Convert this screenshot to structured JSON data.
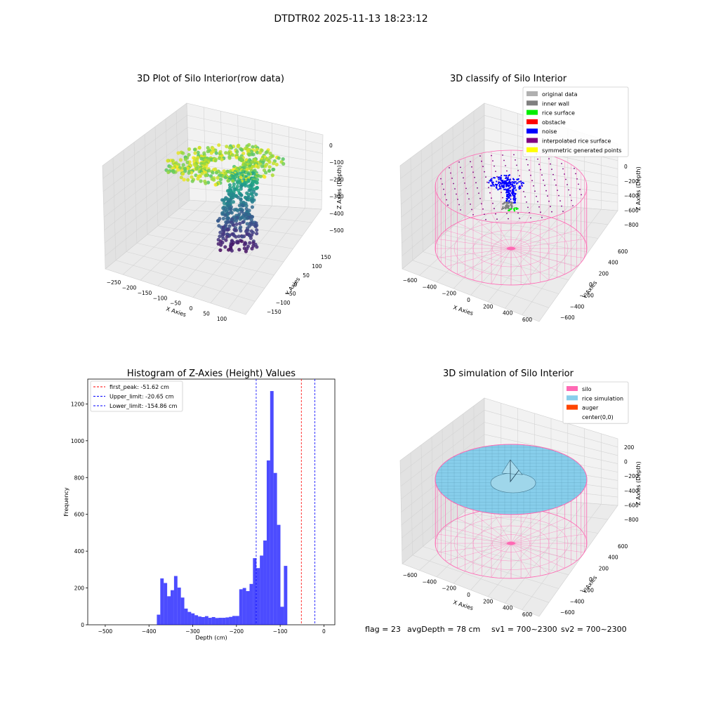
{
  "figure": {
    "suptitle": "DTDTR02 2025-11-13 18:23:12",
    "footer": {
      "flag": "flag = 23",
      "avg_depth": "avgDepth = 78 cm",
      "sv1": "sv1 = 700~2300",
      "sv2": "sv2 = 700~2300"
    }
  },
  "chart_data": [
    {
      "type": "scatter",
      "title": "3D Plot of Silo Interior(row data)",
      "xlabel": "X Axies",
      "ylabel": "Y Axies",
      "zlabel": "Z Axies (Depth)",
      "x_ticks": [
        "−250",
        "−200",
        "−150",
        "−100",
        "−50",
        "0",
        "50",
        "100"
      ],
      "y_ticks": [
        "−150",
        "−100",
        "−50",
        "0",
        "50",
        "100",
        "150"
      ],
      "z_ticks": [
        "0",
        "−100",
        "−200",
        "−300",
        "−400",
        "−500"
      ],
      "colormap": "viridis",
      "grid": true
    },
    {
      "type": "scatter",
      "title": "3D classify of Silo Interior",
      "xlabel": "X Axies",
      "ylabel": "Y Axies",
      "zlabel": "Z Axies (Depth)",
      "x_ticks": [
        "−600",
        "−400",
        "−200",
        "0",
        "200",
        "400",
        "600"
      ],
      "y_ticks": [
        "−600",
        "−400",
        "−200",
        "0",
        "200",
        "400",
        "600"
      ],
      "z_ticks": [
        "0",
        "−200",
        "−400",
        "−600",
        "−800"
      ],
      "legend": [
        {
          "label": "original data",
          "color": "#b0b0b0"
        },
        {
          "label": "inner wall",
          "color": "#808080"
        },
        {
          "label": "rice surface",
          "color": "#00ee00"
        },
        {
          "label": "obstacle",
          "color": "#ff0000"
        },
        {
          "label": "noise",
          "color": "#0000ff"
        },
        {
          "label": "interpolated rice surface",
          "color": "#800080"
        },
        {
          "label": "symmetric generated points",
          "color": "#ffff00"
        }
      ],
      "legend_position": "top-right",
      "grid": true
    },
    {
      "type": "bar",
      "title": "Histogram of Z-Axies (Height) Values",
      "xlabel": "Depth (cm)",
      "ylabel": "Frequency",
      "x_ticks": [
        "−500",
        "−400",
        "−300",
        "−200",
        "−100",
        "0"
      ],
      "y_ticks": [
        "0",
        "200",
        "400",
        "600",
        "800",
        "1000",
        "1200"
      ],
      "xlim": [
        -540,
        25
      ],
      "ylim": [
        0,
        1335
      ],
      "bin_edges_start": -382,
      "bin_width": 7.85,
      "values": [
        55,
        252,
        227,
        155,
        188,
        265,
        202,
        148,
        88,
        70,
        62,
        52,
        45,
        42,
        47,
        38,
        42,
        37,
        38,
        38,
        40,
        43,
        48,
        48,
        193,
        200,
        183,
        222,
        362,
        308,
        376,
        458,
        893,
        1270,
        825,
        543,
        98,
        320
      ],
      "color": "#0000ff",
      "lines": [
        {
          "label": "first_peak: -51.62 cm",
          "x": -51.62,
          "color": "#ff0000"
        },
        {
          "label": "Upper_limit: -20.65 cm",
          "x": -20.65,
          "color": "#0000ff"
        },
        {
          "label": "Lower_limit: -154.86 cm",
          "x": -154.86,
          "color": "#0000ff"
        }
      ],
      "legend_position": "top-left"
    },
    {
      "type": "area",
      "title": "3D simulation of Silo Interior",
      "xlabel": "X Axies",
      "ylabel": "Y Axies",
      "zlabel": "Z Axies (Depth)",
      "x_ticks": [
        "−600",
        "−400",
        "−200",
        "0",
        "200",
        "400",
        "600"
      ],
      "y_ticks": [
        "−600",
        "−400",
        "−200",
        "0",
        "200",
        "400",
        "600"
      ],
      "z_ticks": [
        "200",
        "0",
        "−200",
        "−400",
        "−600",
        "−800"
      ],
      "legend": [
        {
          "label": "silo",
          "color": "#ff69b4"
        },
        {
          "label": "rice simulation",
          "color": "#87ceeb"
        },
        {
          "label": "auger",
          "color": "#ff4500"
        },
        {
          "label": "center(0,0)",
          "color": ""
        }
      ],
      "legend_position": "top-right",
      "grid": true
    }
  ]
}
